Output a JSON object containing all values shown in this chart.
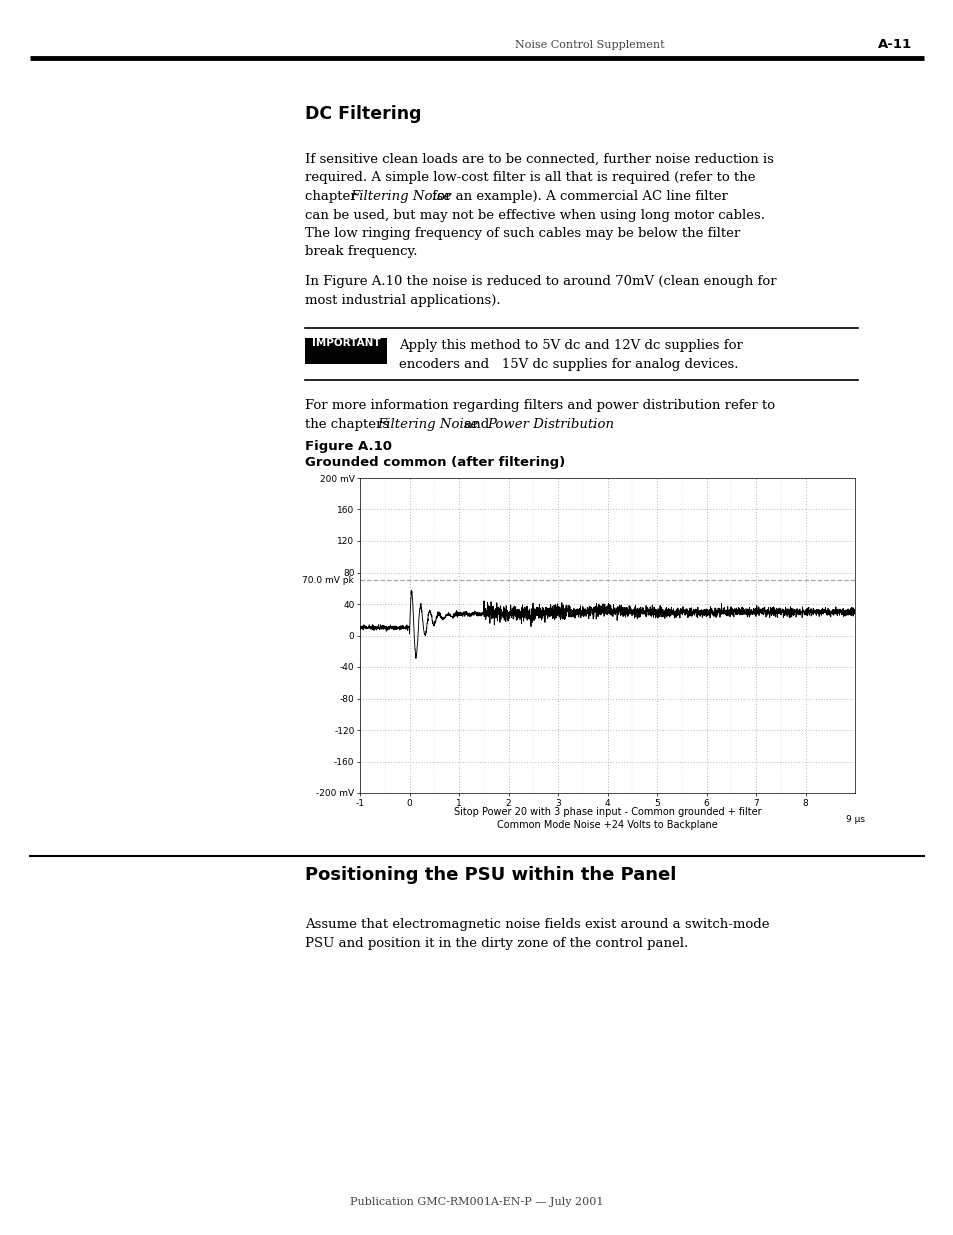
{
  "page_header_left": "Noise Control Supplement",
  "page_header_right": "A-11",
  "section1_title": "DC Filtering",
  "para1_line1": "If sensitive clean loads are to be connected, further noise reduction is",
  "para1_line2": "required. A simple low-cost filter is all that is required (refer to the",
  "para1_line3_a": "chapter ",
  "para1_line3_b": "Filtering Noise",
  "para1_line3_c": " for an example). A commercial AC line filter",
  "para1_line4": "can be used, but may not be effective when using long motor cables.",
  "para1_line5": "The low ringing frequency of such cables may be below the filter",
  "para1_line6": "break frequency.",
  "para2_line1": "In Figure A.10 the noise is reduced to around 70mV (clean enough for",
  "para2_line2": "most industrial applications).",
  "important_label": "IMPORTANT",
  "imp_text1": "Apply this method to 5V dc and 12V dc supplies for",
  "imp_text2": "encoders and   15V dc supplies for analog devices.",
  "para3_line1": "For more information regarding filters and power distribution refer to",
  "para3_line2a": "the chapters ",
  "para3_line2b": "Filtering Noise",
  "para3_line2c": " and ",
  "para3_line2d": "Power Distribution",
  "para3_line2e": ".",
  "fig_label": "Figure A.10",
  "fig_title": "Grounded common (after filtering)",
  "marker_label": "70.0 mV pk",
  "fig_caption1": "Sitop Power 20 with 3 phase input - Common grounded + filter",
  "fig_caption2": "Common Mode Noise +24 Volts to Backplane",
  "section2_title": "Positioning the PSU within the Panel",
  "s2_para1": "Assume that electromagnetic noise fields exist around a switch-mode",
  "s2_para2": "PSU and position it in the dirty zone of the control panel.",
  "footer": "Publication GMC-RM001A-EN-P — July 2001",
  "xmin": -1,
  "xmax": 9,
  "ymin": -200,
  "ymax": 200,
  "yticks": [
    -200,
    -160,
    -120,
    -80,
    -40,
    0,
    40,
    80,
    120,
    160,
    200
  ],
  "ytick_labels": [
    "-200 mV",
    "-160",
    "-120",
    "-80",
    "-40",
    "0",
    "40",
    "80",
    "120",
    "160",
    "200 mV"
  ],
  "xticks": [
    -1,
    0,
    1,
    2,
    3,
    4,
    5,
    6,
    7,
    8
  ],
  "xtick_label_9": "9 μs"
}
